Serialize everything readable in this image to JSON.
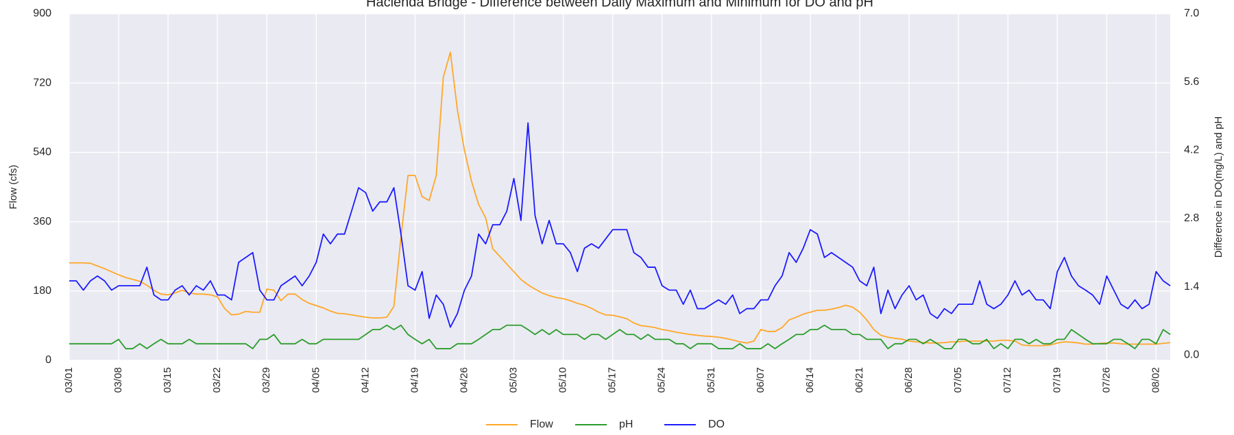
{
  "chart_data": {
    "type": "line",
    "title": "Hacienda Bridge - Difference between Daily Maximum and Minimum for DO and pH",
    "ylabel": "Flow (cfs)",
    "y2label": "Difference in DO(mg/L) and pH",
    "categories": [
      "03/01",
      null,
      null,
      null,
      null,
      null,
      null,
      "03/08",
      null,
      null,
      null,
      null,
      null,
      null,
      "03/15",
      null,
      null,
      null,
      null,
      null,
      null,
      "03/22",
      null,
      null,
      null,
      null,
      null,
      null,
      "03/29",
      null,
      null,
      null,
      null,
      null,
      null,
      "04/05",
      null,
      null,
      null,
      null,
      null,
      null,
      "04/12",
      null,
      null,
      null,
      null,
      null,
      null,
      "04/19",
      null,
      null,
      null,
      null,
      null,
      null,
      "04/26",
      null,
      null,
      null,
      null,
      null,
      null,
      "05/03",
      null,
      null,
      null,
      null,
      null,
      null,
      "05/10",
      null,
      null,
      null,
      null,
      null,
      null,
      "05/17",
      null,
      null,
      null,
      null,
      null,
      null,
      "05/24",
      null,
      null,
      null,
      null,
      null,
      null,
      "05/31",
      null,
      null,
      null,
      null,
      null,
      null,
      "06/07",
      null,
      null,
      null,
      null,
      null,
      null,
      "06/14",
      null,
      null,
      null,
      null,
      null,
      null,
      "06/21",
      null,
      null,
      null,
      null,
      null,
      null,
      "06/28",
      null,
      null,
      null,
      null,
      null,
      null,
      "07/05",
      null,
      null,
      null,
      null,
      null,
      null,
      "07/12",
      null,
      null,
      null,
      null,
      null,
      null,
      "07/19",
      null,
      null,
      null,
      null,
      null,
      null,
      "07/26",
      null,
      null,
      null,
      null,
      null,
      null,
      "08/02",
      null,
      null
    ],
    "series": [
      {
        "name": "Flow",
        "color": "#ffa726",
        "values": [
          253,
          253,
          253,
          252,
          245,
          238,
          230,
          222,
          215,
          210,
          205,
          195,
          182,
          172,
          170,
          175,
          182,
          175,
          172,
          172,
          170,
          165,
          135,
          118,
          120,
          127,
          125,
          125,
          185,
          182,
          155,
          172,
          172,
          158,
          148,
          142,
          136,
          128,
          122,
          121,
          118,
          115,
          112,
          110,
          110,
          112,
          140,
          320,
          480,
          480,
          425,
          415,
          480,
          735,
          800,
          650,
          545,
          465,
          405,
          370,
          290,
          270,
          250,
          230,
          210,
          196,
          185,
          175,
          168,
          163,
          160,
          155,
          148,
          143,
          135,
          125,
          118,
          117,
          113,
          108,
          97,
          90,
          88,
          85,
          80,
          77,
          73,
          70,
          67,
          65,
          63,
          62,
          60,
          57,
          53,
          48,
          45,
          50,
          80,
          75,
          75,
          85,
          105,
          112,
          120,
          125,
          130,
          130,
          133,
          137,
          143,
          138,
          125,
          105,
          80,
          65,
          60,
          57,
          55,
          50,
          48,
          46,
          45,
          45,
          46,
          48,
          48,
          50,
          50,
          50,
          50,
          50,
          52,
          52,
          50,
          40,
          38,
          38,
          38,
          40,
          45,
          48,
          47,
          45,
          42,
          42,
          44,
          45,
          45,
          43,
          42,
          42,
          42,
          42,
          42,
          44,
          46
        ]
      },
      {
        "name": "pH",
        "color": "#2a9d2a",
        "axis": "y2",
        "values": [
          0.23,
          0.23,
          0.23,
          0.23,
          0.23,
          0.23,
          0.23,
          0.32,
          0.13,
          0.13,
          0.23,
          0.13,
          0.23,
          0.32,
          0.23,
          0.23,
          0.23,
          0.32,
          0.23,
          0.23,
          0.23,
          0.23,
          0.23,
          0.23,
          0.23,
          0.23,
          0.13,
          0.32,
          0.32,
          0.42,
          0.23,
          0.23,
          0.23,
          0.32,
          0.23,
          0.23,
          0.32,
          0.32,
          0.32,
          0.32,
          0.32,
          0.32,
          0.42,
          0.52,
          0.52,
          0.61,
          0.52,
          0.61,
          0.42,
          0.32,
          0.23,
          0.32,
          0.13,
          0.13,
          0.13,
          0.23,
          0.23,
          0.23,
          0.32,
          0.42,
          0.52,
          0.52,
          0.61,
          0.61,
          0.61,
          0.52,
          0.42,
          0.52,
          0.42,
          0.52,
          0.42,
          0.42,
          0.42,
          0.32,
          0.42,
          0.42,
          0.32,
          0.42,
          0.52,
          0.42,
          0.42,
          0.32,
          0.42,
          0.32,
          0.32,
          0.32,
          0.23,
          0.23,
          0.13,
          0.23,
          0.23,
          0.23,
          0.13,
          0.13,
          0.13,
          0.23,
          0.13,
          0.13,
          0.13,
          0.23,
          0.13,
          0.23,
          0.32,
          0.42,
          0.42,
          0.52,
          0.52,
          0.61,
          0.52,
          0.52,
          0.52,
          0.42,
          0.42,
          0.32,
          0.32,
          0.32,
          0.13,
          0.23,
          0.23,
          0.32,
          0.32,
          0.23,
          0.32,
          0.23,
          0.13,
          0.13,
          0.32,
          0.32,
          0.23,
          0.23,
          0.32,
          0.13,
          0.23,
          0.13,
          0.32,
          0.32,
          0.23,
          0.32,
          0.23,
          0.23,
          0.32,
          0.32,
          0.52,
          0.42,
          0.32,
          0.23,
          0.23,
          0.23,
          0.32,
          0.32,
          0.23,
          0.13,
          0.32,
          0.32,
          0.23,
          0.52,
          0.42
        ]
      },
      {
        "name": "DO",
        "color": "#1a1aff",
        "axis": "y2",
        "values": [
          1.52,
          1.52,
          1.33,
          1.52,
          1.62,
          1.52,
          1.33,
          1.42,
          1.42,
          1.42,
          1.42,
          1.8,
          1.23,
          1.13,
          1.13,
          1.33,
          1.42,
          1.23,
          1.42,
          1.33,
          1.52,
          1.23,
          1.23,
          1.13,
          1.9,
          2.0,
          2.1,
          1.33,
          1.13,
          1.13,
          1.42,
          1.52,
          1.62,
          1.42,
          1.62,
          1.9,
          2.48,
          2.28,
          2.48,
          2.48,
          2.95,
          3.43,
          3.33,
          2.95,
          3.14,
          3.14,
          3.43,
          2.48,
          1.42,
          1.33,
          1.71,
          0.75,
          1.23,
          1.04,
          0.57,
          0.85,
          1.33,
          1.62,
          2.48,
          2.28,
          2.67,
          2.67,
          2.95,
          3.62,
          2.76,
          4.76,
          2.86,
          2.28,
          2.76,
          2.28,
          2.28,
          2.1,
          1.71,
          2.19,
          2.28,
          2.19,
          2.38,
          2.57,
          2.57,
          2.57,
          2.1,
          2.0,
          1.8,
          1.8,
          1.42,
          1.33,
          1.33,
          1.04,
          1.33,
          0.95,
          0.95,
          1.04,
          1.13,
          1.04,
          1.23,
          0.85,
          0.95,
          0.95,
          1.13,
          1.13,
          1.42,
          1.62,
          2.1,
          1.9,
          2.19,
          2.57,
          2.48,
          2.0,
          2.1,
          2.0,
          1.9,
          1.8,
          1.52,
          1.42,
          1.8,
          0.85,
          1.33,
          0.95,
          1.23,
          1.42,
          1.13,
          1.23,
          0.85,
          0.75,
          0.95,
          0.85,
          1.04,
          1.04,
          1.04,
          1.52,
          1.04,
          0.95,
          1.04,
          1.23,
          1.52,
          1.23,
          1.33,
          1.13,
          1.13,
          0.95,
          1.71,
          2.0,
          1.62,
          1.42,
          1.33,
          1.23,
          1.04,
          1.62,
          1.33,
          1.04,
          0.95,
          1.13,
          0.95,
          1.04,
          1.71,
          1.52,
          1.42
        ]
      }
    ],
    "ylim": [
      0,
      900
    ],
    "yticks": [
      0,
      180,
      360,
      540,
      720,
      900
    ],
    "y2lim": [
      -0.11,
      7.0
    ],
    "y2ticks": [
      {
        "value": 0,
        "label": "0.0"
      },
      1.4,
      2.8,
      4.2,
      5.6,
      {
        "value": 7,
        "label": "7.0"
      }
    ],
    "grid": true,
    "legend": "lower center"
  }
}
